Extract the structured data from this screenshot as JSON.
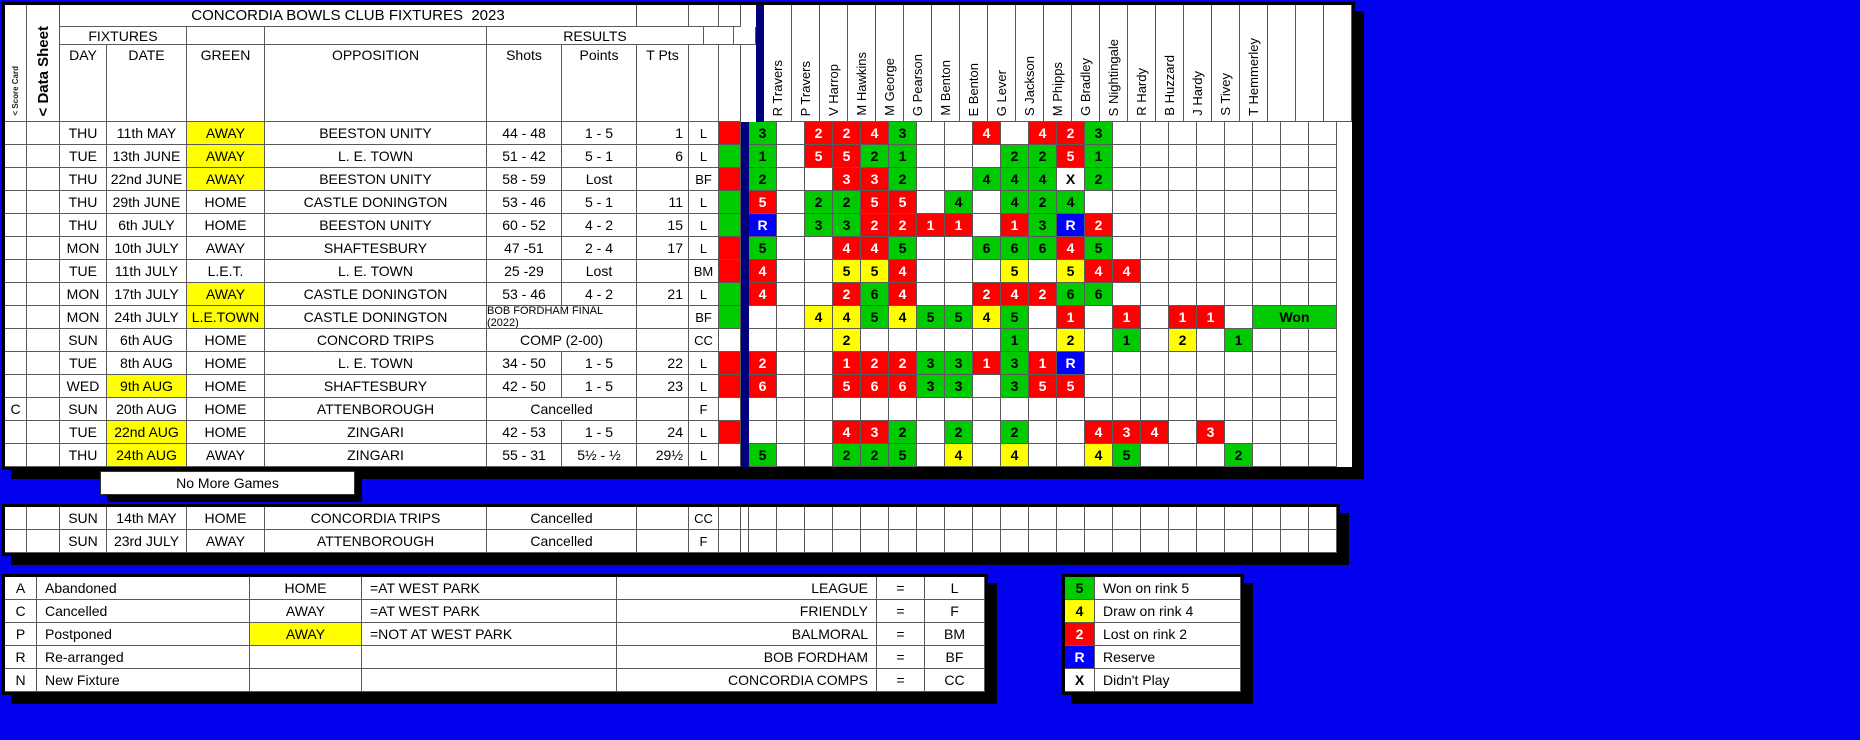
{
  "title": "CONCORDIA BOWLS CLUB FIXTURES  2023",
  "side_labels": {
    "score_card": "< Score Card",
    "data_sheet": "< Data Sheet"
  },
  "header": {
    "fixtures": "FIXTURES",
    "results": "RESULTS",
    "columns": [
      "DAY",
      "DATE",
      "GREEN",
      "OPPOSITION",
      "Shots",
      "Points",
      "T Pts"
    ]
  },
  "players": [
    "R Travers",
    "P Travers",
    "V Harrop",
    "M Hawkins",
    "M George",
    "G Pearson",
    "M Benton",
    "E Benton",
    "G Lever",
    "S Jackson",
    "M Phipps",
    "G Bradley",
    "S Nightingale",
    "R Hardy",
    "B Huzzard",
    "J Hardy",
    "S Tivey",
    "T Hemmerley",
    "",
    "",
    ""
  ],
  "won_label": "Won",
  "no_more_games": "No More Games",
  "rows": [
    {
      "flag": "",
      "day": "THU",
      "date": "11th MAY",
      "date_hl": false,
      "green": "AWAY",
      "green_hl": true,
      "opp": "BEESTON UNITY",
      "shots": "44 - 48",
      "points": "1 - 5",
      "tpts": "1",
      "span": null,
      "code": "L",
      "ind": "r",
      "won": false,
      "cells": [
        [
          0,
          "3",
          "g"
        ],
        [
          2,
          "2",
          "r"
        ],
        [
          3,
          "2",
          "r"
        ],
        [
          4,
          "4",
          "r"
        ],
        [
          5,
          "3",
          "g"
        ],
        [
          8,
          "4",
          "r"
        ],
        [
          10,
          "4",
          "r"
        ],
        [
          11,
          "2",
          "r"
        ],
        [
          12,
          "3",
          "g"
        ]
      ]
    },
    {
      "flag": "",
      "day": "TUE",
      "date": "13th JUNE",
      "date_hl": false,
      "green": "AWAY",
      "green_hl": true,
      "opp": "L. E. TOWN",
      "shots": "51 - 42",
      "points": "5 - 1",
      "tpts": "6",
      "span": null,
      "code": "L",
      "ind": "g",
      "won": false,
      "cells": [
        [
          0,
          "1",
          "g"
        ],
        [
          2,
          "5",
          "r"
        ],
        [
          3,
          "5",
          "r"
        ],
        [
          4,
          "2",
          "g"
        ],
        [
          5,
          "1",
          "g"
        ],
        [
          9,
          "2",
          "g"
        ],
        [
          10,
          "2",
          "g"
        ],
        [
          11,
          "5",
          "r"
        ],
        [
          12,
          "1",
          "g"
        ]
      ]
    },
    {
      "flag": "",
      "day": "THU",
      "date": "22nd JUNE",
      "date_hl": false,
      "green": "AWAY",
      "green_hl": true,
      "opp": "BEESTON UNITY",
      "shots": "58 - 59",
      "points": "Lost",
      "tpts": "",
      "span": null,
      "code": "BF",
      "ind": "r",
      "won": false,
      "cells": [
        [
          0,
          "2",
          "g"
        ],
        [
          3,
          "3",
          "r"
        ],
        [
          4,
          "3",
          "r"
        ],
        [
          5,
          "2",
          "g"
        ],
        [
          8,
          "4",
          "g"
        ],
        [
          9,
          "4",
          "g"
        ],
        [
          10,
          "4",
          "g"
        ],
        [
          11,
          "X",
          "w"
        ],
        [
          12,
          "2",
          "g"
        ]
      ]
    },
    {
      "flag": "",
      "day": "THU",
      "date": "29th JUNE",
      "date_hl": false,
      "green": "HOME",
      "green_hl": false,
      "opp": "CASTLE DONINGTON",
      "shots": "53 - 46",
      "points": "5 - 1",
      "tpts": "11",
      "span": null,
      "code": "L",
      "ind": "g",
      "won": false,
      "cells": [
        [
          0,
          "5",
          "r"
        ],
        [
          2,
          "2",
          "g"
        ],
        [
          3,
          "2",
          "g"
        ],
        [
          4,
          "5",
          "r"
        ],
        [
          5,
          "5",
          "r"
        ],
        [
          7,
          "4",
          "g"
        ],
        [
          9,
          "4",
          "g"
        ],
        [
          10,
          "2",
          "g"
        ],
        [
          11,
          "4",
          "g"
        ]
      ]
    },
    {
      "flag": "",
      "day": "THU",
      "date": "6th JULY",
      "date_hl": false,
      "green": "HOME",
      "green_hl": false,
      "opp": "BEESTON UNITY",
      "shots": "60 - 52",
      "points": "4 - 2",
      "tpts": "15",
      "span": null,
      "code": "L",
      "ind": "g",
      "won": false,
      "cells": [
        [
          0,
          "R",
          "b"
        ],
        [
          2,
          "3",
          "g"
        ],
        [
          3,
          "3",
          "g"
        ],
        [
          4,
          "2",
          "r"
        ],
        [
          5,
          "2",
          "r"
        ],
        [
          6,
          "1",
          "r"
        ],
        [
          7,
          "1",
          "r"
        ],
        [
          9,
          "1",
          "r"
        ],
        [
          10,
          "3",
          "g"
        ],
        [
          11,
          "R",
          "b"
        ],
        [
          12,
          "2",
          "r"
        ]
      ]
    },
    {
      "flag": "",
      "day": "MON",
      "date": "10th JULY",
      "date_hl": false,
      "green": "AWAY",
      "green_hl": false,
      "opp": "SHAFTESBURY",
      "shots": "47 -51",
      "points": "2 - 4",
      "tpts": "17",
      "span": null,
      "code": "L",
      "ind": "r",
      "won": false,
      "cells": [
        [
          0,
          "5",
          "g"
        ],
        [
          3,
          "4",
          "r"
        ],
        [
          4,
          "4",
          "r"
        ],
        [
          5,
          "5",
          "g"
        ],
        [
          8,
          "6",
          "g"
        ],
        [
          9,
          "6",
          "g"
        ],
        [
          10,
          "6",
          "g"
        ],
        [
          11,
          "4",
          "r"
        ],
        [
          12,
          "5",
          "g"
        ]
      ]
    },
    {
      "flag": "",
      "day": "TUE",
      "date": "11th JULY",
      "date_hl": false,
      "green": "L.E.T.",
      "green_hl": false,
      "opp": "L. E. TOWN",
      "shots": "25 -29",
      "points": "Lost",
      "tpts": "",
      "span": null,
      "code": "BM",
      "ind": "r",
      "won": false,
      "cells": [
        [
          0,
          "4",
          "r"
        ],
        [
          3,
          "5",
          "y"
        ],
        [
          4,
          "5",
          "y"
        ],
        [
          5,
          "4",
          "r"
        ],
        [
          9,
          "5",
          "y"
        ],
        [
          11,
          "5",
          "y"
        ],
        [
          12,
          "4",
          "r"
        ],
        [
          13,
          "4",
          "r"
        ]
      ]
    },
    {
      "flag": "",
      "day": "MON",
      "date": "17th JULY",
      "date_hl": false,
      "green": "AWAY",
      "green_hl": true,
      "opp": "CASTLE DONINGTON",
      "shots": "53 - 46",
      "points": "4 - 2",
      "tpts": "21",
      "span": null,
      "code": "L",
      "ind": "g",
      "won": false,
      "cells": [
        [
          0,
          "4",
          "r"
        ],
        [
          3,
          "2",
          "r"
        ],
        [
          4,
          "6",
          "g"
        ],
        [
          5,
          "4",
          "r"
        ],
        [
          8,
          "2",
          "r"
        ],
        [
          9,
          "4",
          "r"
        ],
        [
          10,
          "2",
          "r"
        ],
        [
          11,
          "6",
          "g"
        ],
        [
          12,
          "6",
          "g"
        ]
      ]
    },
    {
      "flag": "",
      "day": "MON",
      "date": "24th JULY",
      "date_hl": false,
      "green": "L.E.TOWN",
      "green_hl": true,
      "opp": "CASTLE DONINGTON",
      "shots": "",
      "points": "",
      "tpts": "",
      "span": "BOB FORDHAM FINAL (2022)",
      "span_small": true,
      "code": "BF",
      "ind": "g",
      "won": true,
      "cells": [
        [
          2,
          "4",
          "y"
        ],
        [
          3,
          "4",
          "y"
        ],
        [
          4,
          "5",
          "g"
        ],
        [
          5,
          "4",
          "y"
        ],
        [
          6,
          "5",
          "g"
        ],
        [
          7,
          "5",
          "g"
        ],
        [
          8,
          "4",
          "y"
        ],
        [
          9,
          "5",
          "g"
        ],
        [
          11,
          "1",
          "r"
        ],
        [
          13,
          "1",
          "r"
        ],
        [
          15,
          "1",
          "r"
        ],
        [
          16,
          "1",
          "r"
        ]
      ]
    },
    {
      "flag": "",
      "day": "SUN",
      "date": "6th AUG",
      "date_hl": false,
      "green": "HOME",
      "green_hl": false,
      "opp": "CONCORD TRIPS",
      "shots": "",
      "points": "",
      "tpts": "",
      "span": "COMP (2-00)",
      "span_small": false,
      "code": "CC",
      "ind": "w",
      "won": false,
      "cells": [
        [
          3,
          "2",
          "y"
        ],
        [
          9,
          "1",
          "g"
        ],
        [
          11,
          "2",
          "y"
        ],
        [
          13,
          "1",
          "g"
        ],
        [
          15,
          "2",
          "y"
        ],
        [
          17,
          "1",
          "g"
        ]
      ]
    },
    {
      "flag": "",
      "day": "TUE",
      "date": "8th AUG",
      "date_hl": false,
      "green": "HOME",
      "green_hl": false,
      "opp": "L. E. TOWN",
      "shots": "34 - 50",
      "points": "1 - 5",
      "tpts": "22",
      "span": null,
      "code": "L",
      "ind": "r",
      "won": false,
      "cells": [
        [
          0,
          "2",
          "r"
        ],
        [
          3,
          "1",
          "r"
        ],
        [
          4,
          "2",
          "r"
        ],
        [
          5,
          "2",
          "r"
        ],
        [
          6,
          "3",
          "g"
        ],
        [
          7,
          "3",
          "g"
        ],
        [
          8,
          "1",
          "r"
        ],
        [
          9,
          "3",
          "g"
        ],
        [
          10,
          "1",
          "r"
        ],
        [
          11,
          "R",
          "b"
        ]
      ]
    },
    {
      "flag": "",
      "day": "WED",
      "date": "9th AUG",
      "date_hl": true,
      "green": "HOME",
      "green_hl": false,
      "opp": "SHAFTESBURY",
      "shots": "42 - 50",
      "points": "1 - 5",
      "tpts": "23",
      "span": null,
      "code": "L",
      "ind": "r",
      "won": false,
      "cells": [
        [
          0,
          "6",
          "r"
        ],
        [
          3,
          "5",
          "r"
        ],
        [
          4,
          "6",
          "r"
        ],
        [
          5,
          "6",
          "r"
        ],
        [
          6,
          "3",
          "g"
        ],
        [
          7,
          "3",
          "g"
        ],
        [
          9,
          "3",
          "g"
        ],
        [
          10,
          "5",
          "r"
        ],
        [
          11,
          "5",
          "r"
        ]
      ]
    },
    {
      "flag": "C",
      "day": "SUN",
      "date": "20th AUG",
      "date_hl": false,
      "green": "HOME",
      "green_hl": false,
      "opp": "ATTENBOROUGH",
      "shots": "",
      "points": "",
      "tpts": "",
      "span": "Cancelled",
      "span_small": false,
      "code": "F",
      "ind": "w",
      "won": false,
      "cells": []
    },
    {
      "flag": "",
      "day": "TUE",
      "date": "22nd AUG",
      "date_hl": true,
      "green": "HOME",
      "green_hl": false,
      "opp": "ZINGARI",
      "shots": "42 - 53",
      "points": "1 - 5",
      "tpts": "24",
      "span": null,
      "code": "L",
      "ind": "r",
      "won": false,
      "cells": [
        [
          3,
          "4",
          "r"
        ],
        [
          4,
          "3",
          "r"
        ],
        [
          5,
          "2",
          "g"
        ],
        [
          7,
          "2",
          "g"
        ],
        [
          9,
          "2",
          "g"
        ],
        [
          12,
          "4",
          "r"
        ],
        [
          13,
          "3",
          "r"
        ],
        [
          14,
          "4",
          "r"
        ],
        [
          16,
          "3",
          "r"
        ]
      ]
    },
    {
      "flag": "",
      "day": "THU",
      "date": "24th AUG",
      "date_hl": true,
      "green": "AWAY",
      "green_hl": false,
      "opp": "ZINGARI",
      "shots": "55 - 31",
      "points": "5½ - ½",
      "tpts": "29½",
      "span": null,
      "code": "L",
      "ind": "w",
      "won": false,
      "cells": [
        [
          0,
          "5",
          "g"
        ],
        [
          3,
          "2",
          "g"
        ],
        [
          4,
          "2",
          "g"
        ],
        [
          5,
          "5",
          "g"
        ],
        [
          7,
          "4",
          "y"
        ],
        [
          9,
          "4",
          "y"
        ],
        [
          12,
          "4",
          "y"
        ],
        [
          13,
          "5",
          "g"
        ],
        [
          17,
          "2",
          "g"
        ]
      ]
    }
  ],
  "extra_rows": [
    {
      "flag": "",
      "day": "SUN",
      "date": "14th MAY",
      "green": "HOME",
      "opp": "CONCORDIA TRIPS",
      "span": "Cancelled",
      "code": "CC"
    },
    {
      "flag": "",
      "day": "SUN",
      "date": "23rd JULY",
      "green": "AWAY",
      "opp": "ATTENBOROUGH",
      "span": "Cancelled",
      "code": "F"
    }
  ],
  "legend_left": [
    {
      "key": "A",
      "desc": "Abandoned",
      "venue": "HOME",
      "venue_hl": false,
      "venue_desc": "=AT WEST PARK",
      "comp": "LEAGUE",
      "eq": "=",
      "code": "L"
    },
    {
      "key": "C",
      "desc": "Cancelled",
      "venue": "AWAY",
      "venue_hl": false,
      "venue_desc": "=AT WEST PARK",
      "comp": "FRIENDLY",
      "eq": "=",
      "code": "F"
    },
    {
      "key": "P",
      "desc": "Postponed",
      "venue": "AWAY",
      "venue_hl": true,
      "venue_desc": "=NOT AT WEST PARK",
      "comp": "BALMORAL",
      "eq": "=",
      "code": "BM"
    },
    {
      "key": "R",
      "desc": "Re-arranged",
      "venue": "",
      "venue_hl": false,
      "venue_desc": "",
      "comp": "BOB FORDHAM",
      "eq": "=",
      "code": "BF"
    },
    {
      "key": "N",
      "desc": "New Fixture",
      "venue": "",
      "venue_hl": false,
      "venue_desc": "",
      "comp": "CONCORDIA COMPS",
      "eq": "=",
      "code": "CC"
    }
  ],
  "legend_right": [
    {
      "key": "5",
      "color": "g",
      "label": "Won on rink 5"
    },
    {
      "key": "4",
      "color": "y",
      "label": "Draw on rink 4"
    },
    {
      "key": "2",
      "color": "r",
      "label": "Lost on rink 2"
    },
    {
      "key": "R",
      "color": "b",
      "label": "Reserve"
    },
    {
      "key": "X",
      "color": "w",
      "label": "Didn't Play"
    }
  ],
  "colors": {
    "win": "#00CB00",
    "draw": "#FFFF00",
    "loss": "#FE0000",
    "reserve": "#0000FE",
    "highlight": "#FFFF00",
    "background": "#0101EE",
    "separator": "#00007E"
  }
}
